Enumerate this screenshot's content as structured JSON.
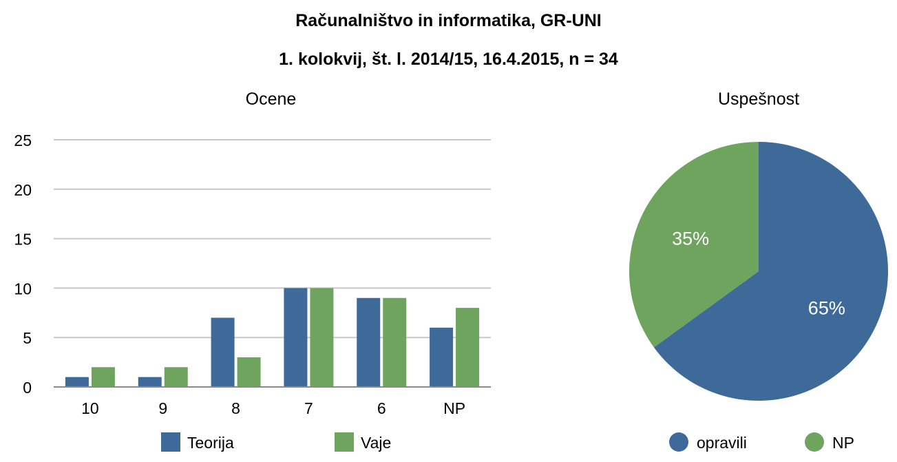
{
  "title_line1": "Računalništvo in informatika, GR-UNI",
  "title_line2": "1. kolokvij, št. l. 2014/15, 16.4.2015, n = 34",
  "colors": {
    "series_1": "#3e6a9a",
    "series_2": "#6fa45f",
    "grid": "#c8c8c8",
    "axis": "#8a8a8a"
  },
  "chart_data": [
    {
      "type": "bar",
      "title": "Ocene",
      "categories": [
        "10",
        "9",
        "8",
        "7",
        "6",
        "NP"
      ],
      "series": [
        {
          "name": "Teorija",
          "values": [
            1,
            1,
            7,
            10,
            9,
            6
          ]
        },
        {
          "name": "Vaje",
          "values": [
            2,
            2,
            3,
            10,
            9,
            8
          ]
        }
      ],
      "ylim": [
        0,
        25
      ],
      "yticks": [
        "0",
        "5",
        "10",
        "15",
        "20",
        "25"
      ],
      "grid": true,
      "legend": "bottom"
    },
    {
      "type": "pie",
      "title": "Uspešnost",
      "labels": [
        "opravili",
        "NP"
      ],
      "values": [
        65,
        35
      ],
      "data_labels": [
        "65%",
        "35%"
      ],
      "legend": "bottom"
    }
  ]
}
